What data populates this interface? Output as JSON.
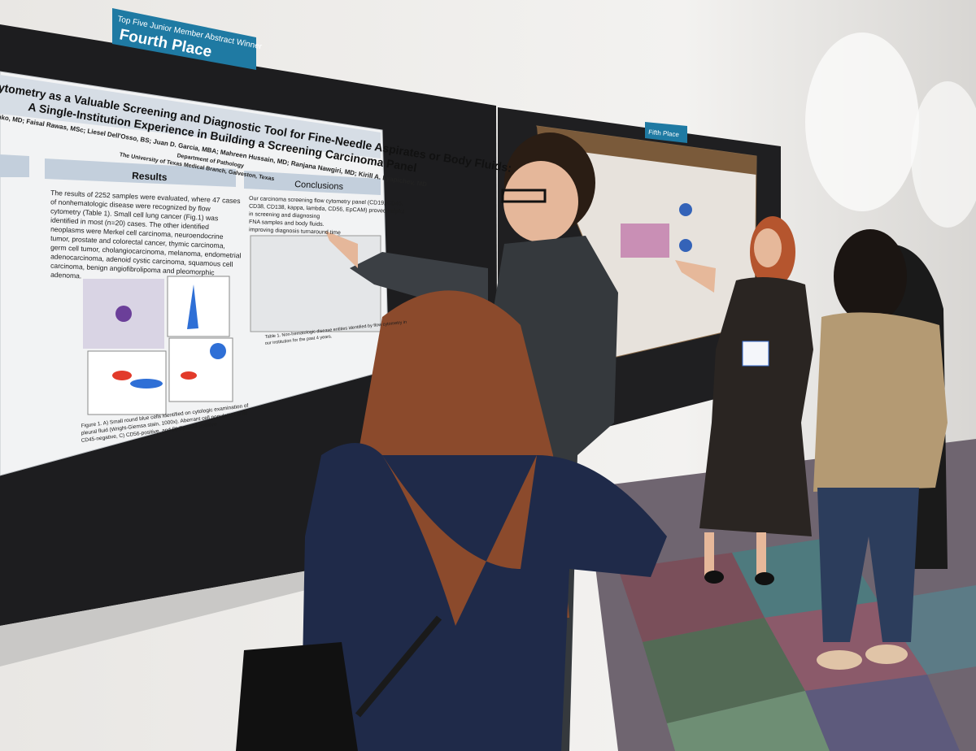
{
  "award_sign": {
    "subtitle": "Top Five Junior Member Abstract Winner",
    "title": "Fourth Place"
  },
  "poster": {
    "title_line1": "ytometry as a Valuable Screening and Diagnostic Tool for Fine-Needle Aspirates or Body Fluids:",
    "title_line2": "A Single-Institution Experience in Building a Screening Carcinoma Panel",
    "authors": "chko, MD; Faisal Rawas, MSc; Liesel Dell'Osso, BS; Juan D. Garcia, MBA; Mahreen Hussain, MD; Ranjana Nawgiri, MD; Kirill A. Lyapichev, MD",
    "department": "Department of Pathology",
    "institution": "The University of Texas Medical Branch, Galveston, Texas",
    "results": {
      "heading": "Results",
      "lines": [
        "The results of 2252 samples were evaluated, where 47 cases",
        "of nonhematologic disease were recognized by flow",
        "cytometry (Table 1). Small cell lung cancer (Fig.1) was",
        "identified in most (n=20) cases. The other identified",
        "neoplasms were Merkel cell carcinoma, neuroendocrine",
        "tumor, prostate and colorectal cancer, thymic carcinoma,",
        "germ cell tumor, cholangiocarcinoma, melanoma, endometrial",
        "adenocarcinoma, adenoid cystic carcinoma, squamous cell",
        "carcinoma, benign angiofibrolipoma and pleomorphic",
        "adenoma."
      ]
    },
    "conclusions": {
      "heading": "Conclusions",
      "lines": [
        "Our carcinoma screening flow cytometry panel (CD19, CD45,",
        "CD38, CD138, kappa, lambda, CD56, EpCAM) proved helpful",
        "in screening and diagnosing",
        "FNA samples and body fluids.",
        "improving diagnosis turnaround time"
      ]
    },
    "figure_caption": [
      "Figure 1. A) Small round blue cells identified on cytologic examination of",
      "pleural fluid (Wright-Giemsa stain, 1000x). Aberrant cell population is B)",
      "CD45-negative, C) CD56-positive, and D) EpCAM-positive"
    ],
    "table_caption": [
      "Table 1. Non-hematologic disease entities identified by flow cytometry in",
      "our institution for the past 4 years."
    ]
  },
  "second_sign": {
    "title": "Fifth Place"
  }
}
